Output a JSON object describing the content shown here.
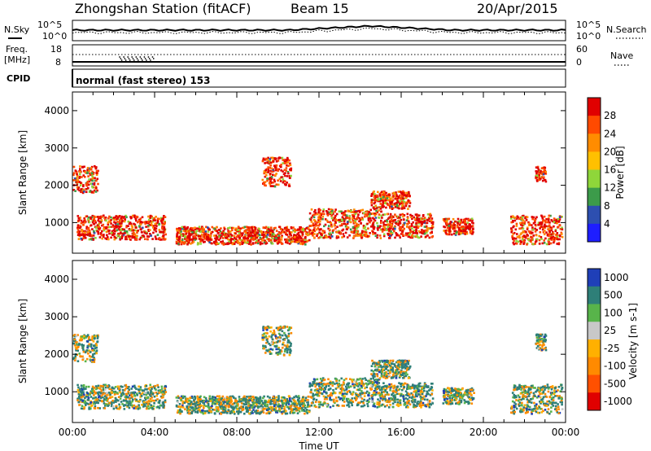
{
  "header": {
    "station": "Zhongshan Station (fitACF)",
    "beam": "Beam 15",
    "date": "20/Apr/2015"
  },
  "strips": {
    "sky_label": "N.Sky",
    "search_label": "N.Search",
    "sky_ticks": [
      "10^5",
      "10^0"
    ],
    "freq_label_1": "Freq.",
    "freq_label_2": "[MHz]",
    "freq_ticks": [
      "18",
      "8"
    ],
    "nave_label": "Nave",
    "nave_ticks": [
      "60",
      "0"
    ],
    "cpid_label": "CPID",
    "cpid_text": "normal (fast stereo) 153"
  },
  "chart_data": [
    {
      "type": "heatmap",
      "title": "",
      "ylabel": "Slant Range [km]",
      "xlabel": "",
      "y_ticks": [
        "4000",
        "3000",
        "2000",
        "1000"
      ],
      "ylim": [
        180,
        4500
      ],
      "xlim_hours": [
        0,
        24
      ],
      "colorbar_label": "Power [dB]",
      "colorbar_ticks": [
        "28",
        "24",
        "20",
        "16",
        "12",
        "8",
        "4"
      ],
      "colorbar_colors": [
        "#e00000",
        "#ff4a00",
        "#ff8c00",
        "#ffc000",
        "#8fd63a",
        "#3c9b4a",
        "#2d4fb0",
        "#1e1eff"
      ]
    },
    {
      "type": "heatmap",
      "title": "",
      "ylabel": "Slant Range [km]",
      "xlabel": "Time UT",
      "x_ticks": [
        "00:00",
        "04:00",
        "08:00",
        "12:00",
        "16:00",
        "20:00",
        "00:00"
      ],
      "y_ticks": [
        "4000",
        "3000",
        "2000",
        "1000"
      ],
      "ylim": [
        180,
        4500
      ],
      "xlim_hours": [
        0,
        24
      ],
      "colorbar_label": "Velocity [m s-1]",
      "colorbar_ticks": [
        "1000",
        "500",
        "100",
        "25",
        "-25",
        "-100",
        "-500",
        "-1000"
      ],
      "colorbar_colors": [
        "#1f3fb8",
        "#2e7f78",
        "#58b44a",
        "#c8c8c8",
        "#ffb000",
        "#ff8a00",
        "#ff5000",
        "#e00000"
      ]
    }
  ]
}
